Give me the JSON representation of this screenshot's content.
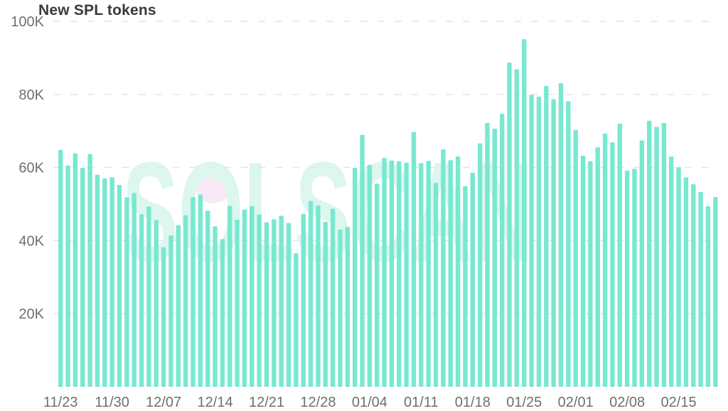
{
  "page": {
    "title": "New SPL tokens"
  },
  "watermark": {
    "text": "SOLSCAN"
  },
  "colors": {
    "bar": "#78e8d1",
    "grid": "#e4e4e4",
    "axis_label": "#6f6f6f",
    "title": "#3a3a3a",
    "watermark_letters": "#ddf6ee",
    "watermark_dot": "#f9e9f7",
    "background": "#ffffff"
  },
  "chart_data": {
    "type": "bar",
    "title": "New SPL tokens",
    "xlabel": "",
    "ylabel": "",
    "ylim": [
      0,
      100000
    ],
    "grid": "horizontal-dashed",
    "legend": "none",
    "x_tick_every": 7,
    "x_tick_labels": [
      "11/23",
      "11/30",
      "12/07",
      "12/14",
      "12/21",
      "12/28",
      "01/04",
      "01/11",
      "01/18",
      "01/25",
      "02/01",
      "02/08",
      "02/15"
    ],
    "y_ticks": [
      {
        "label": "20K",
        "value": 20000
      },
      {
        "label": "40K",
        "value": 40000
      },
      {
        "label": "60K",
        "value": 60000
      },
      {
        "label": "80K",
        "value": 80000
      },
      {
        "label": "100K",
        "value": 100000
      }
    ],
    "x": [
      "11/23",
      "11/24",
      "11/25",
      "11/26",
      "11/27",
      "11/28",
      "11/29",
      "11/30",
      "12/01",
      "12/02",
      "12/03",
      "12/04",
      "12/05",
      "12/06",
      "12/07",
      "12/08",
      "12/09",
      "12/10",
      "12/11",
      "12/12",
      "12/13",
      "12/14",
      "12/15",
      "12/16",
      "12/17",
      "12/18",
      "12/19",
      "12/20",
      "12/21",
      "12/22",
      "12/23",
      "12/24",
      "12/25",
      "12/26",
      "12/27",
      "12/28",
      "12/29",
      "12/30",
      "12/31",
      "01/01",
      "01/02",
      "01/03",
      "01/04",
      "01/05",
      "01/06",
      "01/07",
      "01/08",
      "01/09",
      "01/10",
      "01/11",
      "01/12",
      "01/13",
      "01/14",
      "01/15",
      "01/16",
      "01/17",
      "01/18",
      "01/19",
      "01/20",
      "01/21",
      "01/22",
      "01/23",
      "01/24",
      "01/25",
      "01/26",
      "01/27",
      "01/28",
      "01/29",
      "01/30",
      "01/31",
      "02/01",
      "02/02",
      "02/03",
      "02/04",
      "02/05",
      "02/06",
      "02/07",
      "02/08",
      "02/09",
      "02/10",
      "02/11",
      "02/12",
      "02/13",
      "02/14",
      "02/15",
      "02/16",
      "02/17",
      "02/18",
      "02/19",
      "02/20"
    ],
    "values": [
      64800,
      60500,
      63900,
      59900,
      63700,
      58000,
      57000,
      57300,
      55200,
      51800,
      53000,
      47200,
      49300,
      45600,
      38200,
      41400,
      44200,
      46900,
      51900,
      52600,
      48200,
      43900,
      40400,
      49500,
      45700,
      48500,
      49400,
      47100,
      45000,
      45800,
      46800,
      44800,
      36500,
      47300,
      50800,
      49600,
      45100,
      48700,
      43000,
      43700,
      59900,
      68900,
      60700,
      55600,
      62600,
      61900,
      61700,
      61300,
      69700,
      61200,
      61800,
      55800,
      65000,
      62000,
      63000,
      54900,
      58600,
      66600,
      72200,
      70600,
      74700,
      88700,
      86900,
      95100,
      79900,
      79400,
      82300,
      78700,
      83100,
      78100,
      70300,
      63200,
      61700,
      65500,
      69300,
      66900,
      72000,
      59100,
      59600,
      67400,
      72800,
      71100,
      72200,
      63000,
      60100,
      57300,
      55400,
      53300,
      49400,
      51900
    ]
  }
}
